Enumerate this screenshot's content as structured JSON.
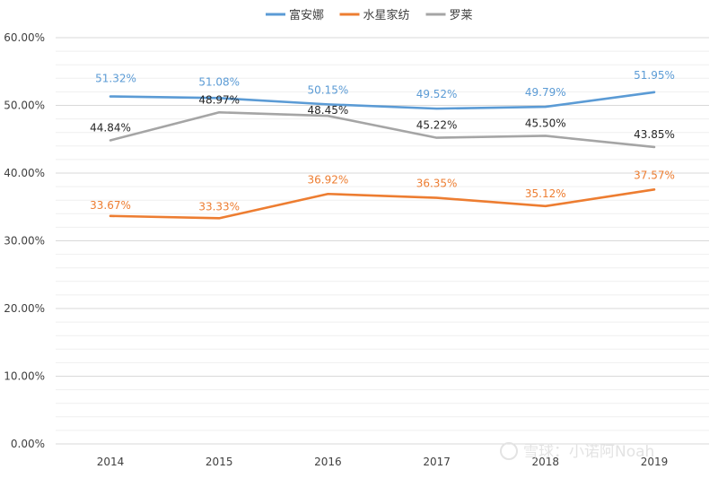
{
  "chart_data": {
    "type": "line",
    "title": "",
    "xlabel": "",
    "ylabel": "",
    "categories": [
      "2014",
      "2015",
      "2016",
      "2017",
      "2018",
      "2019"
    ],
    "ylim": [
      0,
      60
    ],
    "yticks": [
      0,
      10,
      20,
      30,
      40,
      50,
      60
    ],
    "ytick_labels": [
      "0.00%",
      "10.00%",
      "20.00%",
      "30.00%",
      "40.00%",
      "50.00%",
      "60.00%"
    ],
    "grid": true,
    "legend_position": "top-center",
    "series": [
      {
        "name": "富安娜",
        "color": "#5B9BD5",
        "values": [
          51.32,
          51.08,
          50.15,
          49.52,
          49.79,
          51.95
        ],
        "labels": [
          "51.32%",
          "51.08%",
          "50.15%",
          "49.52%",
          "49.79%",
          "51.95%"
        ]
      },
      {
        "name": "水星家纺",
        "color": "#ED7D31",
        "values": [
          33.67,
          33.33,
          36.92,
          36.35,
          35.12,
          37.57
        ],
        "labels": [
          "33.67%",
          "33.33%",
          "36.92%",
          "36.35%",
          "35.12%",
          "37.57%"
        ]
      },
      {
        "name": "罗莱",
        "color": "#A5A5A5",
        "label_color": "#262626",
        "values": [
          44.84,
          48.97,
          48.45,
          45.22,
          45.5,
          43.85
        ],
        "labels": [
          "44.84%",
          "48.97%",
          "48.45%",
          "45.22%",
          "45.50%",
          "43.85%"
        ]
      }
    ]
  },
  "watermark": {
    "text": "雪球：小诺阿Noah"
  }
}
